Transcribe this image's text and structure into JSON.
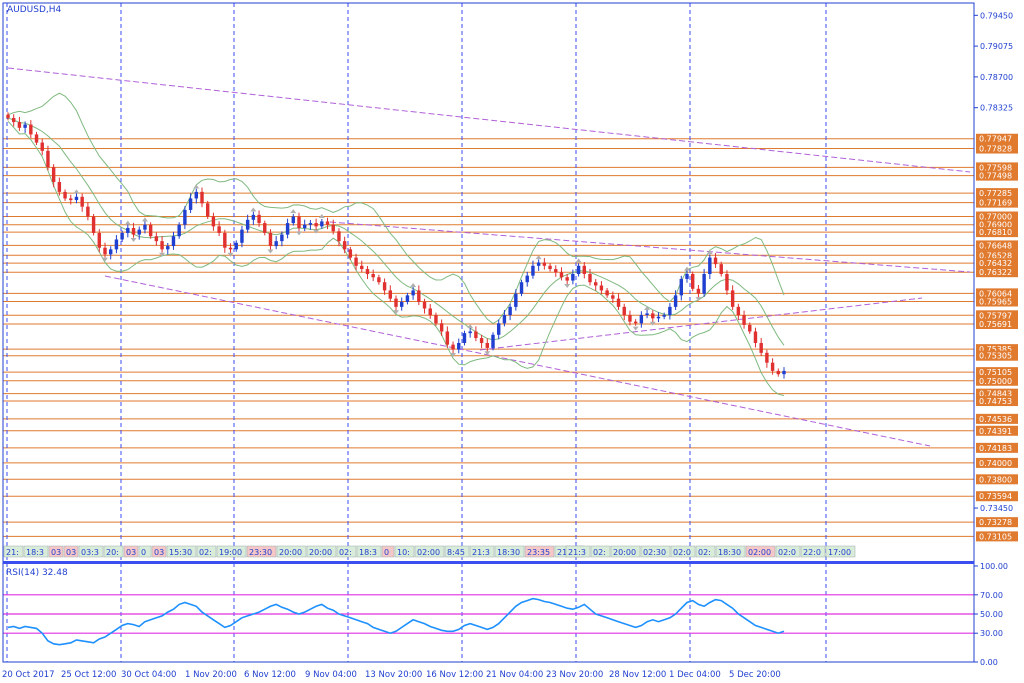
{
  "chart_data": {
    "type": "candlestick",
    "symbol": "AUDUSD,H4",
    "price_axis": {
      "range": [
        0.73,
        0.796
      ],
      "ticks": [
        "0.79450",
        "0.79075",
        "0.78700",
        "0.78325",
        "0.73450"
      ]
    },
    "x_axis": {
      "tick_labels": [
        "20 Oct 2017",
        "25 Oct 12:00",
        "30 Oct 04:00",
        "1 Nov 20:00",
        "6 Nov 12:00",
        "9 Nov 04:00",
        "13 Nov 20:00",
        "16 Nov 12:00",
        "21 Nov 04:00",
        "23 Nov 20:00",
        "28 Nov 12:00",
        "1 Dec 04:00",
        "5 Dec 20:00"
      ]
    },
    "levels": [
      "0.77947",
      "0.77828",
      "0.77598",
      "0.77498",
      "0.77285",
      "0.77169",
      "0.77000",
      "0.76900",
      "0.76810",
      "0.76648",
      "0.76528",
      "0.76432",
      "0.76322",
      "0.76064",
      "0.75965",
      "0.75797",
      "0.75691",
      "0.75385",
      "0.75305",
      "0.75105",
      "0.75000",
      "0.74843",
      "0.74753",
      "0.74536",
      "0.74391",
      "0.74183",
      "0.74000",
      "0.73800",
      "0.73594",
      "0.73278",
      "0.73105"
    ],
    "time_strip": [
      "21:",
      "18:3",
      "03",
      "03",
      "03:3",
      "20:",
      "03",
      "0",
      "03",
      "15:30",
      "02:",
      "19:00",
      "23:30",
      "20:00",
      "20:00",
      "02:",
      "18:3",
      "0",
      "10:",
      "02:00",
      "8:45",
      "21:3",
      "18:30",
      "23:35",
      "21:00",
      "21:3",
      "02:",
      "20:00",
      "02:30",
      "02:0",
      "02:",
      "18:30",
      "02:00",
      "02:0",
      "22:0",
      "17:00"
    ],
    "close": [
      0.782,
      0.7815,
      0.7808,
      0.7812,
      0.78,
      0.779,
      0.778,
      0.776,
      0.7742,
      0.773,
      0.7722,
      0.772,
      0.7724,
      0.7712,
      0.77,
      0.768,
      0.7662,
      0.7654,
      0.766,
      0.7672,
      0.768,
      0.7686,
      0.7678,
      0.7684,
      0.769,
      0.7676,
      0.767,
      0.766,
      0.7664,
      0.7676,
      0.769,
      0.7708,
      0.7722,
      0.773,
      0.7716,
      0.77,
      0.7688,
      0.768,
      0.7662,
      0.766,
      0.7668,
      0.7684,
      0.7696,
      0.7702,
      0.7692,
      0.768,
      0.7664,
      0.767,
      0.7678,
      0.7692,
      0.77,
      0.7686,
      0.769,
      0.7692,
      0.7688,
      0.7694,
      0.769,
      0.7682,
      0.767,
      0.766,
      0.765,
      0.764,
      0.7636,
      0.763,
      0.7626,
      0.762,
      0.761,
      0.76,
      0.759,
      0.7596,
      0.7604,
      0.761,
      0.7596,
      0.7588,
      0.758,
      0.757,
      0.756,
      0.7544,
      0.7538,
      0.7546,
      0.7558,
      0.756,
      0.7552,
      0.7546,
      0.754,
      0.7556,
      0.757,
      0.758,
      0.759,
      0.7606,
      0.762,
      0.7628,
      0.764,
      0.7644,
      0.764,
      0.7636,
      0.7632,
      0.7626,
      0.7622,
      0.763,
      0.764,
      0.763,
      0.762,
      0.7616,
      0.761,
      0.7604,
      0.76,
      0.759,
      0.758,
      0.7572,
      0.757,
      0.758,
      0.7582,
      0.7576,
      0.7578,
      0.758,
      0.759,
      0.7604,
      0.7624,
      0.763,
      0.7612,
      0.7606,
      0.763,
      0.765,
      0.7642,
      0.763,
      0.761,
      0.759,
      0.758,
      0.7568,
      0.756,
      0.7546,
      0.7534,
      0.7522,
      0.7512,
      0.7508,
      0.7512
    ],
    "rsi": {
      "label": "RSI(14) 32.48",
      "range": [
        0,
        100
      ],
      "ticks": [
        "100.00",
        "70.00",
        "50.00",
        "30.00",
        "0.00"
      ],
      "levels": [
        70,
        50,
        30
      ],
      "values": [
        36,
        37,
        35,
        37,
        36,
        35,
        30,
        22,
        19,
        18,
        19,
        20,
        23,
        22,
        21,
        20,
        24,
        26,
        30,
        34,
        38,
        40,
        39,
        37,
        42,
        44,
        46,
        48,
        52,
        55,
        60,
        62,
        60,
        58,
        52,
        48,
        44,
        40,
        36,
        38,
        42,
        46,
        48,
        50,
        52,
        55,
        58,
        60,
        57,
        55,
        52,
        50,
        52,
        55,
        58,
        60,
        56,
        54,
        50,
        48,
        46,
        44,
        42,
        40,
        36,
        34,
        32,
        30,
        32,
        36,
        40,
        44,
        42,
        40,
        37,
        35,
        33,
        32,
        32,
        34,
        38,
        40,
        38,
        36,
        34,
        36,
        40,
        46,
        52,
        58,
        62,
        64,
        66,
        65,
        63,
        62,
        60,
        58,
        56,
        55,
        57,
        60,
        55,
        50,
        48,
        46,
        44,
        42,
        40,
        38,
        36,
        38,
        42,
        44,
        42,
        44,
        46,
        50,
        56,
        62,
        64,
        60,
        58,
        62,
        65,
        64,
        60,
        56,
        50,
        46,
        42,
        38,
        36,
        34,
        32,
        30,
        32
      ]
    }
  }
}
